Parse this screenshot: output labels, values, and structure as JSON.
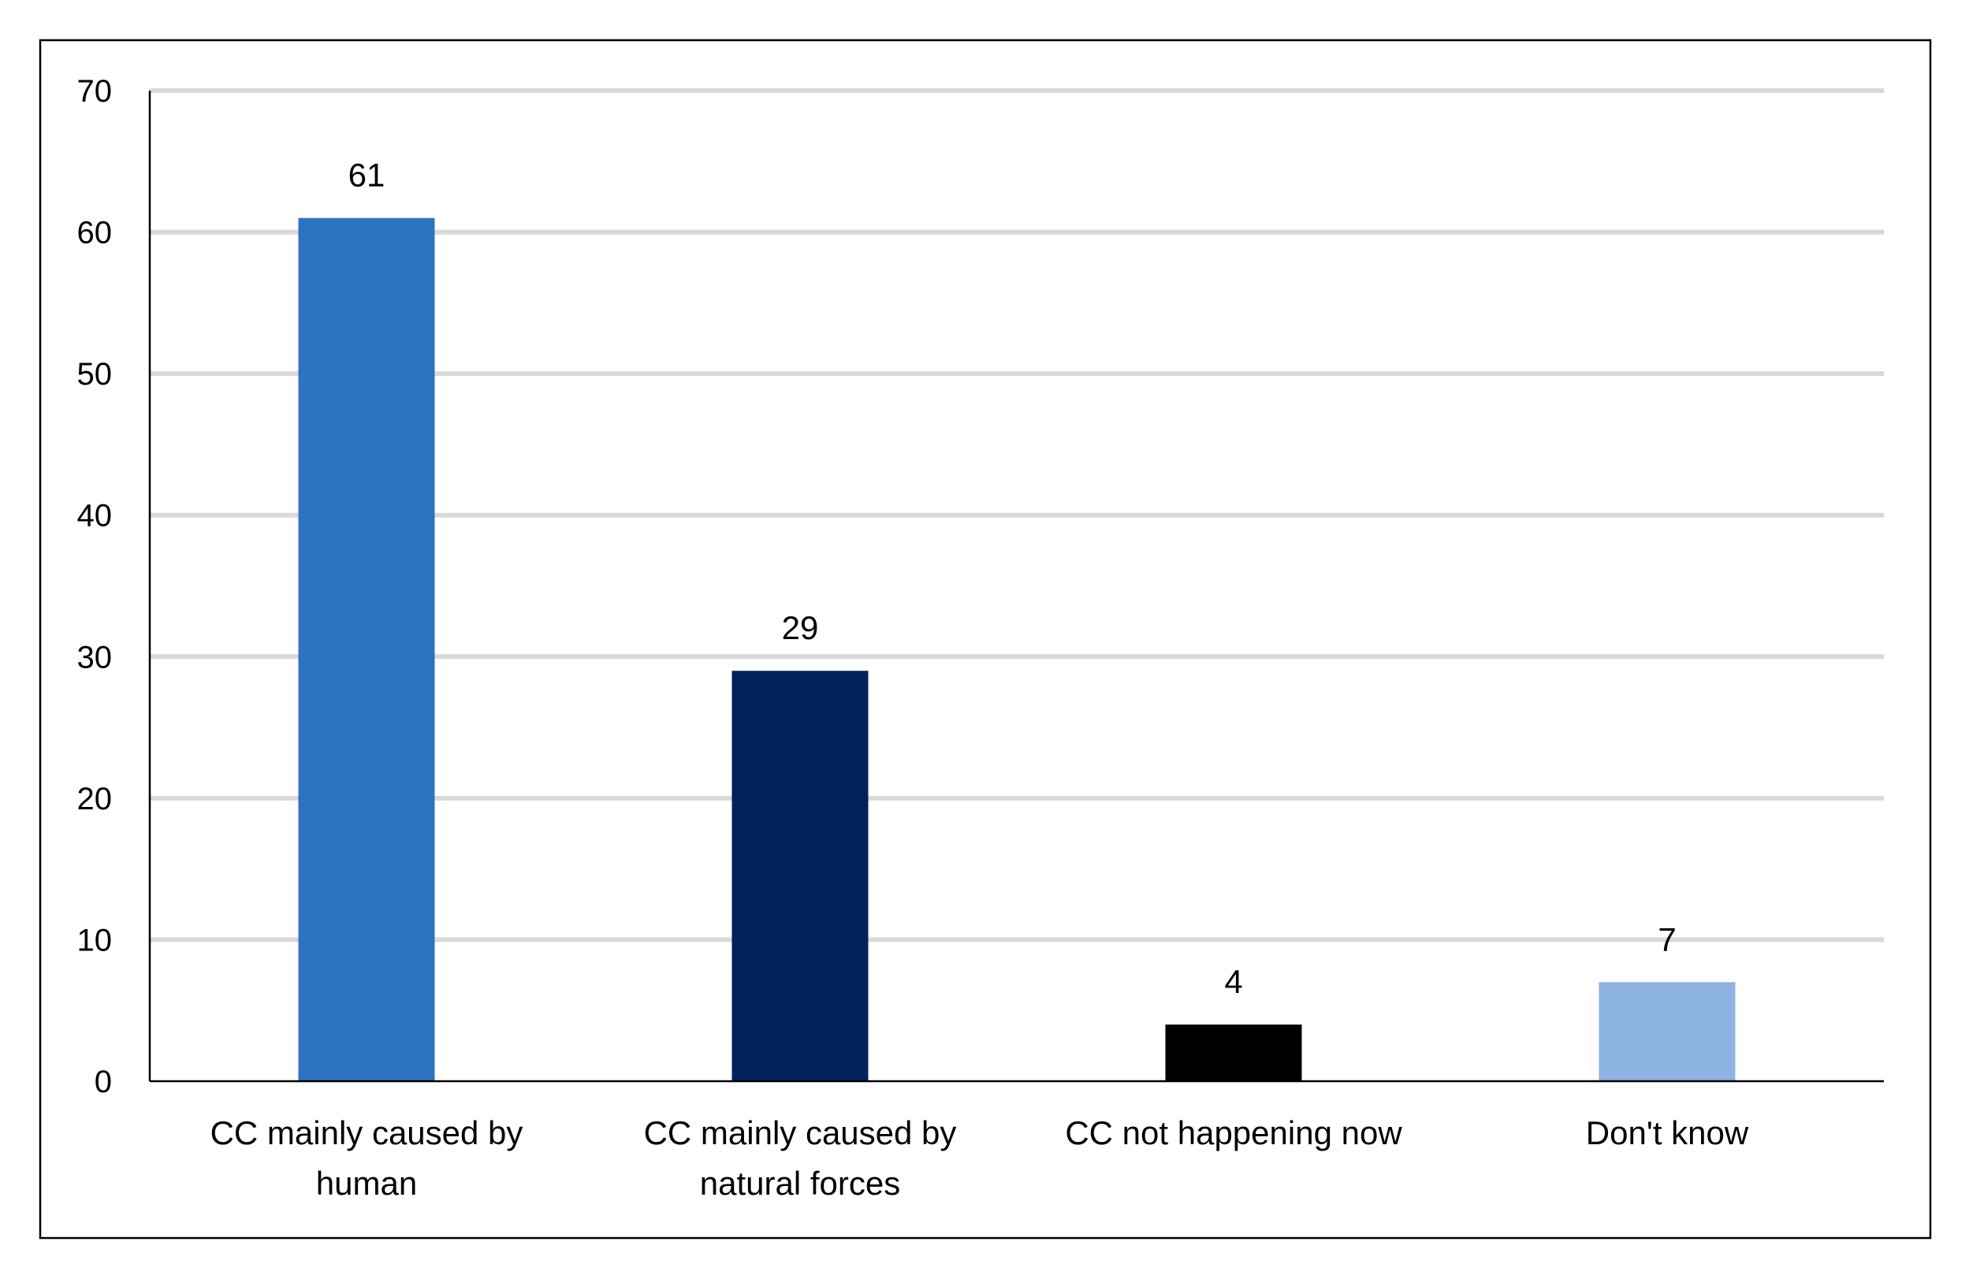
{
  "chart_data": {
    "type": "bar",
    "title": "",
    "xlabel": "",
    "ylabel": "",
    "categories": [
      [
        "CC mainly caused by",
        "human"
      ],
      [
        "CC mainly caused by",
        "natural forces"
      ],
      [
        "CC not happening now"
      ],
      [
        "Don't know"
      ]
    ],
    "values": [
      61,
      29,
      4,
      7
    ],
    "data_labels": [
      "61",
      "29",
      "4",
      "7"
    ],
    "bar_colors": [
      "#2E72C2",
      "#03215C",
      "#000000",
      "#8DB3E2"
    ],
    "ylim": [
      0,
      70
    ],
    "yticks": [
      0,
      10,
      20,
      30,
      40,
      50,
      60,
      70
    ],
    "ytick_labels": [
      "0",
      "10",
      "20",
      "30",
      "40",
      "50",
      "60",
      "70"
    ],
    "grid": true,
    "grid_color": "#D9D9D9",
    "legend": "none"
  }
}
